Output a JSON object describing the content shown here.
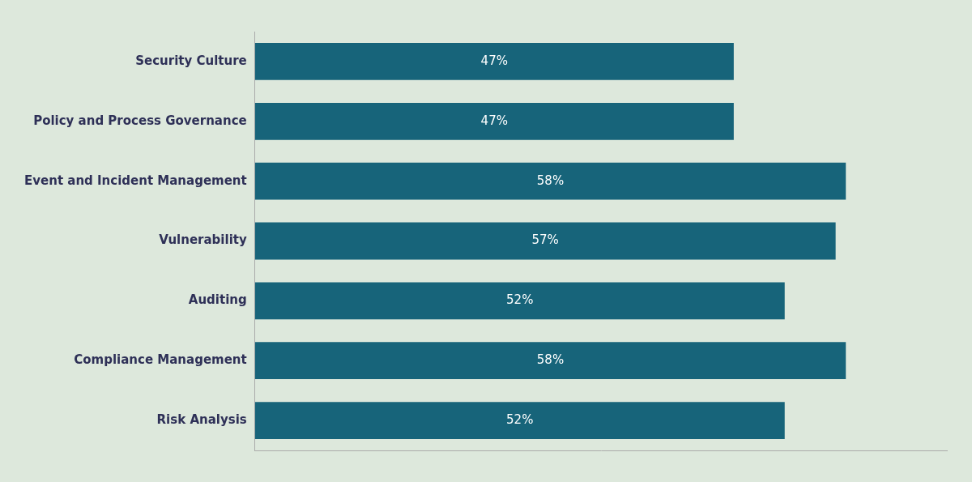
{
  "chart_data": {
    "type": "bar",
    "orientation": "horizontal",
    "categories": [
      "Security Culture",
      "Policy and Process Governance",
      "Event and Incident Management",
      "Vulnerability",
      "Auditing",
      "Compliance Management",
      "Risk Analysis"
    ],
    "values": [
      47,
      47,
      58,
      57,
      52,
      58,
      52
    ],
    "value_labels": [
      "47%",
      "47%",
      "58%",
      "57%",
      "52%",
      "58%",
      "52%"
    ],
    "color": "#17647A",
    "xlim": [
      0,
      68
    ],
    "data_labels": true,
    "tick_labels": "y",
    "grid": false
  }
}
